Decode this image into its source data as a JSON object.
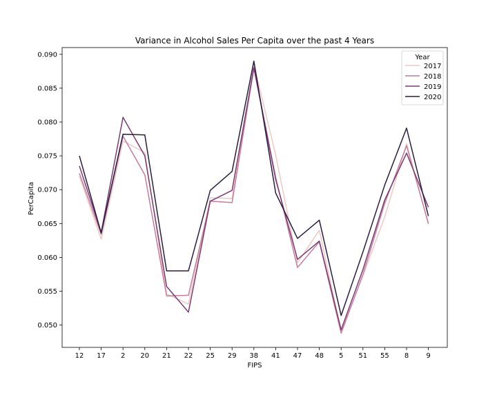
{
  "chart_data": {
    "type": "line",
    "title": "Variance in Alcohol Sales Per Capita over the past 4 Years",
    "xlabel": "FIPS",
    "ylabel": "PerCapita",
    "categories": [
      "12",
      "17",
      "2",
      "20",
      "21",
      "22",
      "25",
      "29",
      "38",
      "41",
      "47",
      "48",
      "5",
      "51",
      "55",
      "8",
      "9"
    ],
    "ylim": [
      0.0467,
      0.091
    ],
    "yticks": [
      0.05,
      0.055,
      0.06,
      0.065,
      0.07,
      0.075,
      0.08,
      0.085,
      0.09
    ],
    "ytick_labels": [
      "0.050",
      "0.055",
      "0.060",
      "0.065",
      "0.070",
      "0.075",
      "0.080",
      "0.085",
      "0.090"
    ],
    "grid": false,
    "legend": {
      "title": "Year",
      "position": "top-right"
    },
    "series": [
      {
        "name": "2017",
        "color": "#ecc9c6",
        "values": [
          0.072,
          0.0627,
          0.0772,
          0.0755,
          0.0546,
          0.0531,
          0.0688,
          0.0687,
          0.0885,
          0.0751,
          0.0592,
          0.064,
          0.049,
          0.0573,
          0.066,
          0.0768,
          0.0649
        ]
      },
      {
        "name": "2018",
        "color": "#c67b9b",
        "values": [
          0.0724,
          0.0634,
          0.0779,
          0.0722,
          0.0543,
          0.0544,
          0.0683,
          0.0681,
          0.088,
          0.0718,
          0.0585,
          0.0623,
          0.0488,
          0.0575,
          0.068,
          0.0765,
          0.065
        ]
      },
      {
        "name": "2019",
        "color": "#7a3b73",
        "values": [
          0.0735,
          0.0637,
          0.0807,
          0.075,
          0.0557,
          0.0519,
          0.0683,
          0.0699,
          0.088,
          0.0715,
          0.0597,
          0.0624,
          0.0493,
          0.0582,
          0.0685,
          0.0754,
          0.0674
        ]
      },
      {
        "name": "2020",
        "color": "#2b1c3d",
        "values": [
          0.075,
          0.0636,
          0.0782,
          0.0781,
          0.058,
          0.058,
          0.0699,
          0.0727,
          0.089,
          0.0695,
          0.0628,
          0.0655,
          0.0514,
          0.0608,
          0.0707,
          0.0791,
          0.0661
        ]
      }
    ]
  }
}
